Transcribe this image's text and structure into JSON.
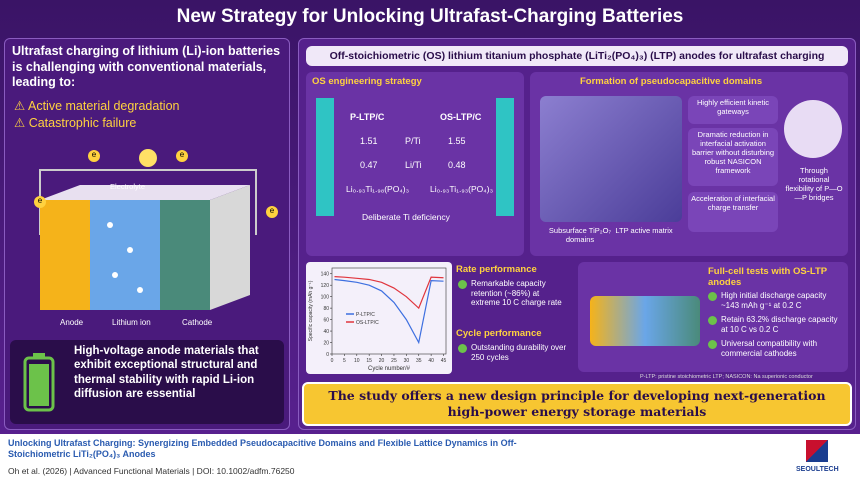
{
  "header": {
    "title": "New Strategy for Unlocking Ultrafast-Charging Batteries"
  },
  "left": {
    "intro": "Ultrafast charging of lithium (Li)-ion batteries is challenging with conventional materials, leading to:",
    "problems": [
      "Active material degradation",
      "Catastrophic failure"
    ],
    "battery": {
      "electrolyte": "Electrolyte",
      "anode": "Anode",
      "ion": "Lithium ion",
      "cathode": "Cathode",
      "electron": "e"
    },
    "conclusion": "High-voltage anode materials that exhibit exceptional structural and thermal stability with rapid Li-ion diffusion are essential"
  },
  "right": {
    "title": "Off-stoichiometric (OS) lithium titanium phosphate (LiTi₂(PO₄)₃) (LTP) anodes for ultrafast charging",
    "strategy": {
      "heading": "OS engineering strategy",
      "columns": [
        "P-LTP/C",
        "OS-LTP/C"
      ],
      "rows": [
        {
          "left": "1.51",
          "label": "P/Ti",
          "right": "1.55"
        },
        {
          "left": "0.47",
          "label": "Li/Ti",
          "right": "0.48"
        }
      ],
      "formulas": [
        "Li₀.₉₃Ti₁.₉₈(PO₄)₃",
        "Li₀.₉₃Ti₁.₉₃(PO₄)₃"
      ],
      "caption": "Deliberate Ti deficiency"
    },
    "formation": {
      "heading": "Formation of pseudocapacitive domains",
      "points": [
        "Highly efficient kinetic gateways",
        "Dramatic reduction in interfacial activation barrier without disturbing robust NASICON framework",
        "Acceleration of interfacial charge transfer"
      ],
      "domains": "Subsurface TiP₂O₇ domains",
      "matrix": "LTP active matrix",
      "flexibility": "Through rotational flexibility of P—O—P bridges"
    },
    "rate_chart": {
      "type": "line",
      "ylabel": "Specific capacity (mAh g⁻¹)",
      "xlabel": "Cycle number/#",
      "x": [
        1,
        5,
        10,
        15,
        20,
        25,
        30,
        35,
        40,
        45
      ],
      "series": [
        {
          "name": "P-LTP/C",
          "color": "#3d6fe0",
          "values": [
            130,
            128,
            125,
            120,
            110,
            90,
            60,
            20,
            128,
            127
          ]
        },
        {
          "name": "OS-LTP/C",
          "color": "#e0353d",
          "values": [
            135,
            134,
            132,
            130,
            125,
            115,
            100,
            80,
            134,
            133
          ]
        }
      ],
      "xlim": [
        0,
        46
      ],
      "xticks": [
        0,
        5,
        10,
        15,
        20,
        25,
        30,
        35,
        40,
        45
      ],
      "ylim": [
        0,
        150
      ],
      "yticks": [
        0,
        20,
        40,
        60,
        80,
        100,
        120,
        140
      ]
    },
    "performance": {
      "rate_heading": "Rate performance",
      "rate_text": "Remarkable capacity retention (~86%) at extreme 10 C charge rate",
      "cycle_heading": "Cycle performance",
      "cycle_text": "Outstanding durability over 250 cycles"
    },
    "fullcell": {
      "heading": "Full-cell tests with OS-LTP anodes",
      "points": [
        "High initial discharge capacity ~143 mAh g⁻¹ at 0.2 C",
        "Retain 63.2% discharge capacity at 10 C vs 0.2 C",
        "Universal compatibility with commercial cathodes"
      ]
    },
    "footnote": "P-LTP: pristine stoichiometric LTP; NASICON: Na superionic conductor",
    "banner": "The study offers a new design principle for developing next-generation high-power energy storage materials"
  },
  "footer": {
    "title": "Unlocking Ultrafast Charging: Synergizing Embedded Pseudocapacitive Domains and Flexible Lattice Dynamics in Off-Stoichiometric LiTi₂(PO₄)₃ Anodes",
    "citation": "Oh et al. (2026)  |  Advanced Functional Materials  |  DOI: 10.1002/adfm.76250",
    "logo": "SEOULTECH"
  }
}
